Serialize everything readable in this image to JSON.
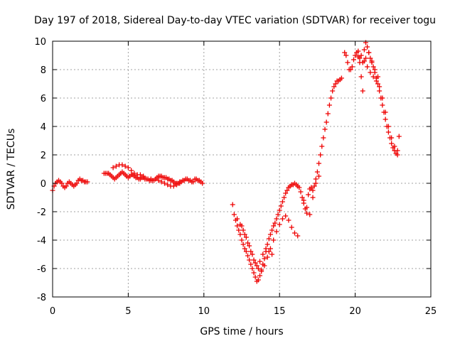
{
  "chart_data": {
    "type": "scatter",
    "title": "Day 197 of 2018, Sidereal Day-to-day VTEC variation (SDTVAR) for receiver togu",
    "xlabel": "GPS time / hours",
    "ylabel": "SDTVAR / TECUs",
    "xlim": [
      0,
      25
    ],
    "ylim": [
      -8,
      10
    ],
    "xticks": [
      "0",
      "5",
      "10",
      "15",
      "20",
      "25"
    ],
    "yticks": [
      "-8",
      "-6",
      "-4",
      "-2",
      "0",
      "2",
      "4",
      "6",
      "8",
      "10"
    ],
    "grid": true,
    "marker": "plus",
    "color": "#ee0000",
    "series": [
      {
        "x": [
          0.0,
          0.1,
          0.2,
          0.3,
          0.4,
          0.5,
          0.6,
          0.7,
          0.8,
          0.9,
          1.0,
          1.1,
          1.2,
          1.3,
          1.4,
          1.5,
          1.6,
          1.7,
          1.8,
          1.9,
          2.0,
          2.1,
          2.2,
          2.3,
          3.4,
          3.5,
          3.6,
          3.7,
          3.8,
          3.9,
          4.0,
          4.1,
          4.2,
          4.3,
          4.4,
          4.5,
          4.6,
          4.7,
          4.8,
          4.9,
          5.0,
          5.1,
          5.2,
          5.3,
          5.4,
          5.5,
          5.6,
          5.7,
          5.8,
          5.9,
          6.0,
          6.1,
          6.2,
          6.3,
          6.4,
          6.5,
          6.6,
          6.7,
          6.8,
          6.9,
          7.0,
          7.1,
          7.2,
          7.3,
          7.4,
          7.5,
          7.6,
          7.7,
          7.8,
          7.9,
          8.0,
          8.1,
          8.2,
          8.3,
          8.4,
          8.5,
          8.6,
          8.7,
          8.8,
          8.9,
          9.0,
          9.1,
          9.2,
          9.3,
          9.4,
          9.5,
          9.6,
          9.7,
          9.8,
          9.9,
          4.0,
          4.2,
          4.4,
          4.6,
          4.8,
          5.0,
          5.2,
          5.4,
          5.6,
          5.8,
          6.0,
          6.5,
          7.0,
          7.2,
          7.4,
          7.6,
          7.8,
          8.0,
          8.2,
          8.4
        ],
        "y": [
          -0.5,
          -0.2,
          0.0,
          0.1,
          0.2,
          0.1,
          0.0,
          -0.2,
          -0.3,
          -0.2,
          0.0,
          0.1,
          0.0,
          -0.1,
          -0.2,
          -0.1,
          0.0,
          0.2,
          0.3,
          0.2,
          0.2,
          0.1,
          0.1,
          0.1,
          0.7,
          0.7,
          0.7,
          0.7,
          0.6,
          0.5,
          0.4,
          0.3,
          0.4,
          0.5,
          0.6,
          0.7,
          0.8,
          0.7,
          0.6,
          0.5,
          0.4,
          0.5,
          0.6,
          0.6,
          0.5,
          0.4,
          0.4,
          0.3,
          0.3,
          0.4,
          0.4,
          0.3,
          0.3,
          0.3,
          0.2,
          0.2,
          0.2,
          0.2,
          0.3,
          0.4,
          0.5,
          0.5,
          0.5,
          0.4,
          0.4,
          0.4,
          0.3,
          0.3,
          0.2,
          0.2,
          0.1,
          0.0,
          0.0,
          0.0,
          0.1,
          0.1,
          0.2,
          0.2,
          0.3,
          0.3,
          0.2,
          0.2,
          0.1,
          0.1,
          0.3,
          0.3,
          0.2,
          0.2,
          0.1,
          0.0,
          1.1,
          1.2,
          1.3,
          1.3,
          1.2,
          1.1,
          0.9,
          0.7,
          0.6,
          0.6,
          0.5,
          0.3,
          0.2,
          0.1,
          0.0,
          -0.1,
          -0.2,
          -0.2,
          -0.1,
          0.0
        ]
      },
      {
        "x": [
          11.9,
          12.0,
          12.1,
          12.2,
          12.3,
          12.4,
          12.5,
          12.6,
          12.7,
          12.8,
          12.9,
          13.0,
          13.1,
          13.2,
          13.3,
          13.4,
          13.5,
          13.6,
          13.7,
          13.8,
          13.9,
          14.0,
          14.1,
          14.2,
          14.3,
          14.4,
          14.5,
          14.6,
          14.7,
          14.8,
          14.9,
          15.0,
          15.1,
          15.2,
          15.3,
          15.4,
          15.5,
          15.6,
          15.7,
          15.8,
          15.9,
          16.0,
          16.1,
          16.2,
          16.3,
          12.2,
          12.4,
          12.6,
          12.8,
          13.0,
          13.2,
          13.4,
          13.6,
          13.8,
          14.0,
          14.2,
          14.4,
          14.6,
          14.8,
          15.0,
          15.2,
          15.4,
          15.6,
          15.8,
          16.0,
          16.2,
          12.5,
          12.7,
          12.9,
          13.1,
          13.3,
          13.5,
          13.7,
          13.9,
          14.1,
          14.3,
          14.5,
          16.4,
          16.5,
          16.6,
          16.7,
          16.8,
          16.9,
          17.0,
          17.1,
          17.2,
          17.3,
          17.4,
          17.5,
          17.6,
          17.7,
          17.8,
          17.9,
          18.0,
          18.1,
          18.2,
          18.3,
          18.4,
          18.5,
          18.6,
          18.7,
          18.8,
          18.9,
          19.0,
          19.1,
          16.6,
          16.8,
          17.0,
          17.2,
          17.4,
          17.6,
          19.3,
          19.4,
          19.5,
          19.6,
          19.7,
          19.8,
          19.9,
          20.0,
          20.1,
          20.2,
          20.3,
          20.4,
          20.5,
          20.6,
          20.7,
          20.8,
          20.9,
          21.0,
          21.1,
          21.2,
          21.3,
          21.4,
          21.5,
          21.6,
          21.7,
          21.8,
          21.9,
          22.0,
          22.1,
          22.2,
          22.3,
          22.4,
          22.5,
          22.6,
          22.7,
          22.8,
          22.9,
          20.2,
          20.4,
          20.6,
          20.8,
          21.0,
          21.2,
          21.4,
          21.6,
          21.8,
          22.0,
          22.2,
          22.4,
          22.6,
          22.8,
          20.3,
          20.5,
          20.7,
          20.9,
          21.1,
          21.3,
          21.5
        ],
        "y": [
          -1.5,
          -2.2,
          -2.6,
          -3.0,
          -3.3,
          -3.6,
          -4.0,
          -4.3,
          -4.6,
          -4.8,
          -5.1,
          -5.4,
          -5.7,
          -6.0,
          -6.3,
          -6.6,
          -6.9,
          -6.8,
          -6.5,
          -6.1,
          -5.7,
          -5.3,
          -4.8,
          -4.3,
          -3.9,
          -3.6,
          -3.3,
          -3.0,
          -2.8,
          -2.5,
          -2.2,
          -1.9,
          -1.6,
          -1.3,
          -1.0,
          -0.7,
          -0.5,
          -0.3,
          -0.2,
          -0.1,
          -0.1,
          0.0,
          -0.1,
          -0.2,
          -0.3,
          -2.5,
          -2.9,
          -3.3,
          -3.8,
          -4.4,
          -5.0,
          -5.6,
          -6.0,
          -6.2,
          -5.8,
          -5.2,
          -4.6,
          -4.0,
          -3.4,
          -2.9,
          -2.5,
          -2.3,
          -2.6,
          -3.1,
          -3.5,
          -3.7,
          -3.0,
          -3.6,
          -4.2,
          -4.8,
          -5.4,
          -5.8,
          -5.5,
          -5.0,
          -4.6,
          -4.8,
          -5.0,
          -0.6,
          -1.0,
          -1.4,
          -1.8,
          -2.1,
          -0.8,
          -0.4,
          -0.3,
          -0.5,
          -0.2,
          0.3,
          0.8,
          1.4,
          2.0,
          2.6,
          3.2,
          3.8,
          4.3,
          4.9,
          5.5,
          6.0,
          6.5,
          6.8,
          7.0,
          7.2,
          7.2,
          7.3,
          7.4,
          -1.2,
          -1.7,
          -2.2,
          -1.0,
          0.0,
          0.5,
          9.2,
          9.0,
          8.5,
          8.0,
          8.0,
          8.2,
          8.7,
          9.0,
          9.2,
          8.9,
          8.5,
          7.5,
          6.5,
          9.4,
          9.9,
          9.6,
          9.2,
          8.8,
          8.5,
          8.2,
          7.8,
          7.4,
          7.0,
          6.5,
          6.0,
          5.5,
          5.0,
          4.5,
          4.0,
          3.6,
          3.2,
          2.8,
          2.5,
          2.3,
          2.1,
          2.0,
          3.3,
          9.3,
          9.0,
          8.6,
          8.2,
          7.8,
          7.5,
          7.2,
          6.8,
          6.0,
          5.0,
          4.0,
          3.2,
          2.6,
          2.3,
          8.8,
          8.5,
          8.8,
          9.2,
          8.6,
          8.0,
          7.5
        ]
      }
    ]
  }
}
